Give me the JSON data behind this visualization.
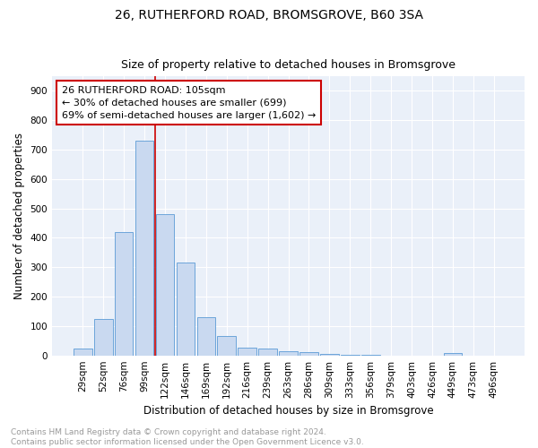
{
  "title": "26, RUTHERFORD ROAD, BROMSGROVE, B60 3SA",
  "subtitle": "Size of property relative to detached houses in Bromsgrove",
  "xlabel": "Distribution of detached houses by size in Bromsgrove",
  "ylabel": "Number of detached properties",
  "bar_labels": [
    "29sqm",
    "52sqm",
    "76sqm",
    "99sqm",
    "122sqm",
    "146sqm",
    "169sqm",
    "192sqm",
    "216sqm",
    "239sqm",
    "263sqm",
    "286sqm",
    "309sqm",
    "333sqm",
    "356sqm",
    "379sqm",
    "403sqm",
    "426sqm",
    "449sqm",
    "473sqm",
    "496sqm"
  ],
  "bar_values": [
    22,
    125,
    420,
    730,
    480,
    315,
    130,
    65,
    25,
    22,
    15,
    10,
    4,
    2,
    1,
    0,
    0,
    0,
    8,
    0,
    0
  ],
  "bar_color": "#c9d9f0",
  "bar_edge_color": "#5b9bd5",
  "vline_x": 3.5,
  "annotation_title": "26 RUTHERFORD ROAD: 105sqm",
  "annotation_line1": "← 30% of detached houses are smaller (699)",
  "annotation_line2": "69% of semi-detached houses are larger (1,602) →",
  "annotation_box_color": "#ffffff",
  "annotation_border_color": "#cc0000",
  "ylim": [
    0,
    950
  ],
  "yticks": [
    0,
    100,
    200,
    300,
    400,
    500,
    600,
    700,
    800,
    900
  ],
  "footnote1": "Contains HM Land Registry data © Crown copyright and database right 2024.",
  "footnote2": "Contains public sector information licensed under the Open Government Licence v3.0.",
  "bg_color": "#eaf0f9",
  "title_fontsize": 10,
  "subtitle_fontsize": 9,
  "axis_label_fontsize": 8.5,
  "tick_fontsize": 7.5,
  "annotation_fontsize": 8,
  "footnote_fontsize": 6.5
}
